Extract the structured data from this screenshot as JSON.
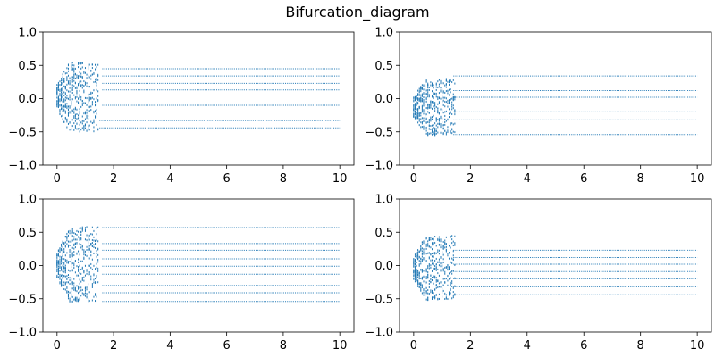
{
  "figure": {
    "title": "Bifurcation_diagram"
  },
  "chart_data": [
    {
      "type": "scatter",
      "panel": "top-left",
      "xlim": [
        -0.5,
        10.5
      ],
      "ylim": [
        -1.0,
        1.0
      ],
      "xticks": [
        0,
        2,
        4,
        6,
        8,
        10
      ],
      "yticks": [
        -1.0,
        -0.5,
        0.0,
        0.5,
        1.0
      ],
      "xtick_labels": [
        "0",
        "2",
        "4",
        "6",
        "8",
        "10"
      ],
      "ytick_labels": [
        "−1.0",
        "−0.5",
        "0.0",
        "0.5",
        "1.0"
      ],
      "grid": false,
      "marker_color": "#1f77b4",
      "transient": {
        "x_range": [
          0.0,
          1.5
        ],
        "y_range": [
          -0.5,
          0.55
        ]
      },
      "steady_levels": [
        {
          "y": 0.45,
          "x_start": 1.6
        },
        {
          "y": 0.34,
          "x_start": 1.6
        },
        {
          "y": 0.23,
          "x_start": 1.6
        },
        {
          "y": 0.13,
          "x_start": 1.6
        },
        {
          "y": -0.1,
          "x_start": 1.6
        },
        {
          "y": -0.33,
          "x_start": 1.5
        },
        {
          "y": -0.44,
          "x_start": 1.5
        }
      ]
    },
    {
      "type": "scatter",
      "panel": "top-right",
      "xlim": [
        -0.5,
        10.5
      ],
      "ylim": [
        -1.0,
        1.0
      ],
      "xticks": [
        0,
        2,
        4,
        6,
        8,
        10
      ],
      "yticks": [
        -1.0,
        -0.5,
        0.0,
        0.5,
        1.0
      ],
      "xtick_labels": [
        "0",
        "2",
        "4",
        "6",
        "8",
        "10"
      ],
      "ytick_labels": [
        "−1.0",
        "−0.5",
        "0.0",
        "0.5",
        "1.0"
      ],
      "grid": false,
      "marker_color": "#1f77b4",
      "transient": {
        "x_range": [
          0.0,
          1.5
        ],
        "y_range": [
          -0.55,
          0.3
        ]
      },
      "steady_levels": [
        {
          "y": 0.34,
          "x_start": 1.4
        },
        {
          "y": 0.12,
          "x_start": 1.4
        },
        {
          "y": 0.02,
          "x_start": 1.4
        },
        {
          "y": -0.08,
          "x_start": 1.4
        },
        {
          "y": -0.2,
          "x_start": 1.4
        },
        {
          "y": -0.32,
          "x_start": 1.4
        },
        {
          "y": -0.54,
          "x_start": 1.4
        }
      ]
    },
    {
      "type": "scatter",
      "panel": "bottom-left",
      "xlim": [
        -0.5,
        10.5
      ],
      "ylim": [
        -1.0,
        1.0
      ],
      "xticks": [
        0,
        2,
        4,
        6,
        8,
        10
      ],
      "yticks": [
        -1.0,
        -0.5,
        0.0,
        0.5,
        1.0
      ],
      "xtick_labels": [
        "0",
        "2",
        "4",
        "6",
        "8",
        "10"
      ],
      "ytick_labels": [
        "−1.0",
        "−0.5",
        "0.0",
        "0.5",
        "1.0"
      ],
      "grid": false,
      "marker_color": "#1f77b4",
      "transient": {
        "x_range": [
          0.0,
          1.5
        ],
        "y_range": [
          -0.55,
          0.58
        ]
      },
      "steady_levels": [
        {
          "y": 0.57,
          "x_start": 1.6
        },
        {
          "y": 0.33,
          "x_start": 1.6
        },
        {
          "y": 0.23,
          "x_start": 1.6
        },
        {
          "y": 0.1,
          "x_start": 1.6
        },
        {
          "y": -0.01,
          "x_start": 1.6
        },
        {
          "y": -0.13,
          "x_start": 1.6
        },
        {
          "y": -0.3,
          "x_start": 1.6
        },
        {
          "y": -0.41,
          "x_start": 1.6
        },
        {
          "y": -0.54,
          "x_start": 1.6
        }
      ]
    },
    {
      "type": "scatter",
      "panel": "bottom-right",
      "xlim": [
        -0.5,
        10.5
      ],
      "ylim": [
        -1.0,
        1.0
      ],
      "xticks": [
        0,
        2,
        4,
        6,
        8,
        10
      ],
      "yticks": [
        -1.0,
        -0.5,
        0.0,
        0.5,
        1.0
      ],
      "xtick_labels": [
        "0",
        "2",
        "4",
        "6",
        "8",
        "10"
      ],
      "ytick_labels": [
        "−1.0",
        "−0.5",
        "0.0",
        "0.5",
        "1.0"
      ],
      "grid": false,
      "marker_color": "#1f77b4",
      "transient": {
        "x_range": [
          0.0,
          1.5
        ],
        "y_range": [
          -0.52,
          0.45
        ]
      },
      "steady_levels": [
        {
          "y": 0.23,
          "x_start": 1.4
        },
        {
          "y": 0.12,
          "x_start": 1.4
        },
        {
          "y": 0.02,
          "x_start": 1.4
        },
        {
          "y": -0.09,
          "x_start": 1.4
        },
        {
          "y": -0.2,
          "x_start": 1.4
        },
        {
          "y": -0.32,
          "x_start": 1.4
        },
        {
          "y": -0.44,
          "x_start": 1.4
        }
      ]
    }
  ]
}
